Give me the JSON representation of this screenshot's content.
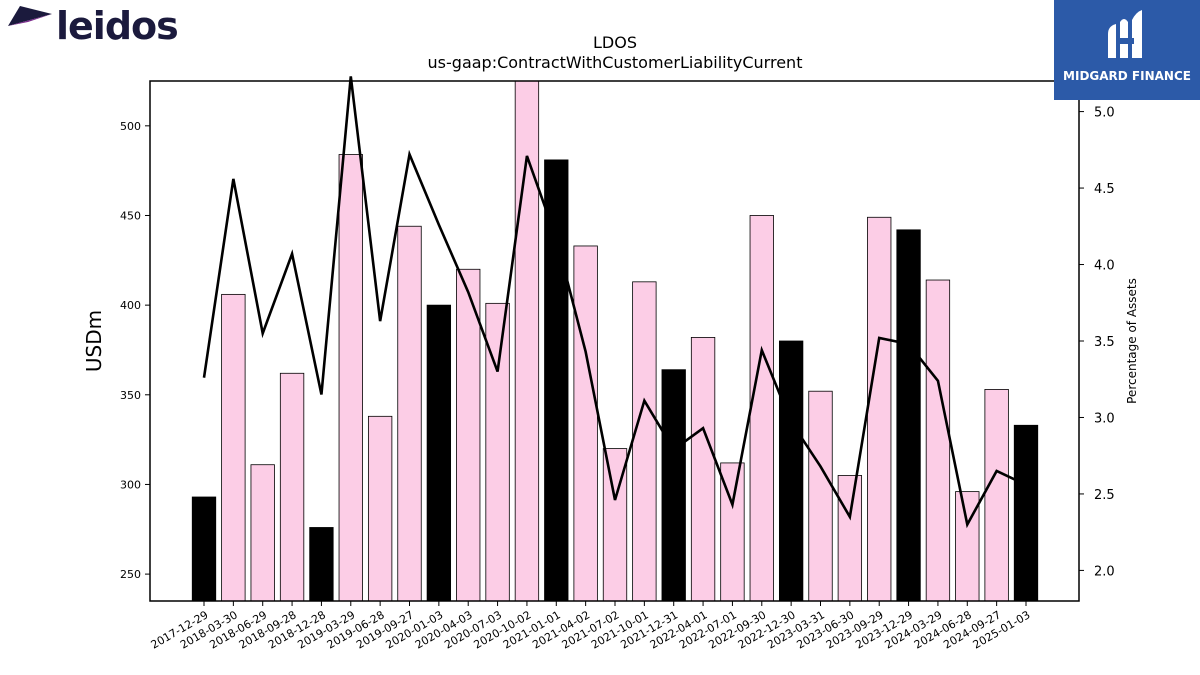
{
  "branding": {
    "left_logo_text": "leidos",
    "right_logo_text": "MIDGARD FINANCE"
  },
  "colors": {
    "bar_pink": "#fccde6",
    "bar_black": "#000000",
    "line": "#000000",
    "logo_blue": "#2c5aa8",
    "logo_purple": "#7b2a8c",
    "logo_navy": "#1b1a3d"
  },
  "chart_data": {
    "type": "bar",
    "title": "LDOS",
    "subtitle": "us-gaap:ContractWithCustomerLiabilityCurrent",
    "ylabel": "USDm",
    "y2label": "Percentage of Assets",
    "ylim": [
      235,
      525
    ],
    "y2lim": [
      1.8,
      5.2
    ],
    "yticks": [
      250,
      300,
      350,
      400,
      450,
      500
    ],
    "y2ticks": [
      "2.0",
      "2.5",
      "3.0",
      "3.5",
      "4.0",
      "4.5",
      "5.0"
    ],
    "categories": [
      "2017-12-29",
      "2018-03-30",
      "2018-06-29",
      "2018-09-28",
      "2018-12-28",
      "2019-03-29",
      "2019-06-28",
      "2019-09-27",
      "2020-01-03",
      "2020-04-03",
      "2020-07-03",
      "2020-10-02",
      "2021-01-01",
      "2021-04-02",
      "2021-07-02",
      "2021-10-01",
      "2021-12-31",
      "2022-04-01",
      "2022-07-01",
      "2022-09-30",
      "2022-12-30",
      "2023-03-31",
      "2023-06-30",
      "2023-09-29",
      "2023-12-29",
      "2024-03-29",
      "2024-06-28",
      "2024-09-27",
      "2025-01-03"
    ],
    "series": [
      {
        "kind": "bar",
        "values": [
          293,
          406,
          311,
          362,
          276,
          484,
          338,
          444,
          400,
          420,
          401,
          526,
          481,
          433,
          320,
          413,
          364,
          382,
          312,
          450,
          380,
          352,
          305,
          449,
          442,
          414,
          296,
          353,
          333
        ],
        "highlight": [
          true,
          false,
          false,
          false,
          true,
          false,
          false,
          false,
          true,
          false,
          false,
          false,
          true,
          false,
          false,
          false,
          true,
          false,
          false,
          false,
          true,
          false,
          false,
          false,
          true,
          false,
          false,
          false,
          true
        ]
      },
      {
        "kind": "line",
        "axis": "right",
        "values": [
          3.26,
          4.56,
          3.55,
          4.07,
          3.15,
          5.23,
          3.63,
          4.72,
          4.26,
          3.82,
          3.3,
          4.71,
          4.17,
          3.43,
          2.46,
          3.11,
          2.79,
          2.93,
          2.43,
          3.44,
          2.97,
          2.68,
          2.35,
          3.52,
          3.48,
          3.24,
          2.3,
          2.65,
          2.56
        ]
      }
    ],
    "grid": false
  }
}
